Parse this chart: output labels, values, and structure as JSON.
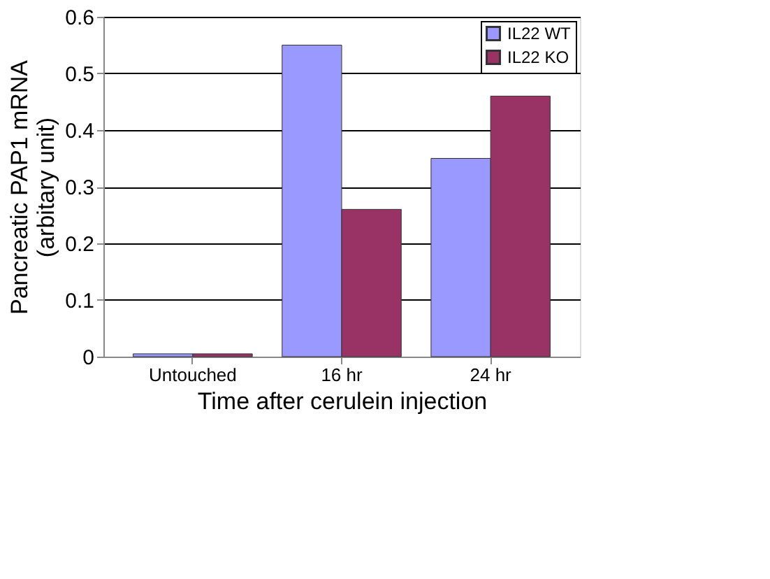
{
  "chart_data": {
    "type": "bar",
    "xlabel": "Time after cerulein injection",
    "ylabel": "Pancreatic PAP1 mRNA\n(arbitary unit)",
    "categories": [
      "Untouched",
      "16 hr",
      "24 hr"
    ],
    "series": [
      {
        "name": "IL22 WT",
        "color": "#9999ff",
        "values": [
          0.005,
          0.55,
          0.35
        ]
      },
      {
        "name": "IL22 KO",
        "color": "#993366",
        "values": [
          0.005,
          0.26,
          0.46
        ]
      }
    ],
    "ylim": [
      0,
      0.6
    ],
    "yticks": [
      {
        "value": 0,
        "label": "0"
      },
      0.1,
      0.2,
      0.3,
      0.4,
      0.5,
      0.6
    ],
    "grid": "y",
    "legend": "top right"
  }
}
